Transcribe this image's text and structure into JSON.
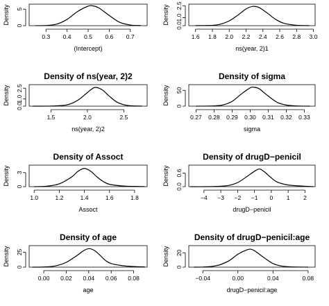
{
  "chart_data": [
    {
      "type": "line",
      "title": "",
      "xlabel": "(Intercept)",
      "ylabel": "Density",
      "xlim": [
        0.22,
        0.78
      ],
      "ylim": [
        0,
        6.5
      ],
      "xticks": [
        0.3,
        0.4,
        0.5,
        0.6,
        0.7
      ],
      "xtick_labels": [
        "0.3",
        "0.4",
        "0.5",
        "0.6",
        "0.7"
      ],
      "yticks": [
        0,
        5
      ],
      "ytick_labels": [
        "0",
        "5"
      ],
      "series": [
        {
          "x": [
            0.25,
            0.3,
            0.35,
            0.4,
            0.45,
            0.5,
            0.52,
            0.55,
            0.6,
            0.65,
            0.7,
            0.75
          ],
          "y": [
            0.01,
            0.06,
            0.45,
            1.9,
            4.3,
            5.9,
            6.0,
            5.4,
            3.1,
            1.0,
            0.2,
            0.03
          ]
        }
      ]
    },
    {
      "type": "line",
      "title": "",
      "xlabel": "ns(year, 2)1",
      "ylabel": "Density",
      "xlim": [
        1.52,
        3.02
      ],
      "ylim": [
        0,
        2.7
      ],
      "xticks": [
        1.6,
        1.8,
        2.0,
        2.2,
        2.4,
        2.6,
        2.8,
        3.0
      ],
      "xtick_labels": [
        "1.6",
        "1.8",
        "2.0",
        "2.2",
        "2.4",
        "2.6",
        "2.8",
        "3.0"
      ],
      "yticks": [
        0,
        1.0,
        2.5
      ],
      "ytick_labels": [
        "0.0",
        "1.0",
        "2.5"
      ],
      "series": [
        {
          "x": [
            1.6,
            1.8,
            1.9,
            2.0,
            2.1,
            2.2,
            2.28,
            2.35,
            2.45,
            2.55,
            2.65,
            2.8,
            2.95
          ],
          "y": [
            0.01,
            0.05,
            0.2,
            0.6,
            1.3,
            2.1,
            2.42,
            2.3,
            1.6,
            0.8,
            0.3,
            0.05,
            0.01
          ]
        }
      ]
    },
    {
      "type": "line",
      "title": "Density of ns(year, 2)2",
      "xlabel": "ns(year, 2)2",
      "ylabel": "Density",
      "xlim": [
        1.2,
        2.82
      ],
      "ylim": [
        0,
        3.0
      ],
      "xticks": [
        1.5,
        2.0,
        2.5
      ],
      "xtick_labels": [
        "1.5",
        "2.0",
        "2.5"
      ],
      "yticks": [
        0,
        1.0,
        2.5
      ],
      "ytick_labels": [
        "0.0",
        "1.0",
        "2.5"
      ],
      "series": [
        {
          "x": [
            1.25,
            1.5,
            1.7,
            1.8,
            1.9,
            2.0,
            2.1,
            2.2,
            2.3,
            2.4,
            2.5,
            2.6,
            2.75
          ],
          "y": [
            0.0,
            0.02,
            0.15,
            0.45,
            1.05,
            1.9,
            2.6,
            2.3,
            1.4,
            0.6,
            0.2,
            0.05,
            0.01
          ]
        }
      ]
    },
    {
      "type": "line",
      "title": "Density of sigma",
      "xlabel": "sigma",
      "ylabel": "Density",
      "xlim": [
        0.266,
        0.336
      ],
      "ylim": [
        0,
        68
      ],
      "xticks": [
        0.27,
        0.28,
        0.29,
        0.3,
        0.31,
        0.32,
        0.33
      ],
      "xtick_labels": [
        "0.27",
        "0.28",
        "0.29",
        "0.30",
        "0.31",
        "0.32",
        "0.33"
      ],
      "yticks": [
        0,
        50
      ],
      "ytick_labels": [
        "0",
        "50"
      ],
      "series": [
        {
          "x": [
            0.27,
            0.28,
            0.285,
            0.29,
            0.295,
            0.3,
            0.302,
            0.305,
            0.31,
            0.315,
            0.32,
            0.325,
            0.333
          ],
          "y": [
            0.0,
            1.0,
            4.0,
            15.0,
            38.0,
            58.0,
            60.0,
            55.0,
            32.0,
            12.0,
            3.5,
            1.0,
            0.0
          ]
        }
      ]
    },
    {
      "type": "line",
      "title": "Density of Assoct",
      "xlabel": "Assoct",
      "ylabel": "Density",
      "xlim": [
        0.96,
        1.9
      ],
      "ylim": [
        0,
        4.6
      ],
      "xticks": [
        1.0,
        1.2,
        1.4,
        1.6,
        1.8
      ],
      "xtick_labels": [
        "1.0",
        "1.2",
        "1.4",
        "1.6",
        "1.8"
      ],
      "yticks": [
        0,
        3
      ],
      "ytick_labels": [
        "0",
        "3"
      ],
      "series": [
        {
          "x": [
            1.0,
            1.1,
            1.2,
            1.3,
            1.35,
            1.4,
            1.45,
            1.5,
            1.55,
            1.6,
            1.7,
            1.8,
            1.88
          ],
          "y": [
            0.0,
            0.1,
            0.6,
            2.1,
            3.3,
            3.9,
            3.3,
            2.1,
            1.1,
            0.5,
            0.15,
            0.05,
            0.02
          ]
        }
      ]
    },
    {
      "type": "line",
      "title": "Density of drugD−penicil",
      "xlabel": "drugD−penicil",
      "ylabel": "Density",
      "xlim": [
        -4.9,
        2.6
      ],
      "ylim": [
        0,
        0.95
      ],
      "xticks": [
        -4,
        -3,
        -2,
        -1,
        0,
        1,
        2
      ],
      "xtick_labels": [
        "−4",
        "−3",
        "−2",
        "−1",
        "0",
        "1",
        "2"
      ],
      "yticks": [
        0,
        0.6
      ],
      "ytick_labels": [
        "0.0",
        "0.6"
      ],
      "series": [
        {
          "x": [
            -4.8,
            -4.0,
            -3.0,
            -2.5,
            -2.0,
            -1.5,
            -1.0,
            -0.7,
            -0.4,
            -0.1,
            0.3,
            0.8,
            1.3,
            2.0,
            2.5
          ],
          "y": [
            0.0,
            0.0,
            0.02,
            0.06,
            0.18,
            0.42,
            0.68,
            0.78,
            0.65,
            0.45,
            0.22,
            0.1,
            0.05,
            0.02,
            0.0
          ]
        }
      ]
    },
    {
      "type": "line",
      "title": "Density of age",
      "xlabel": "age",
      "ylabel": "Density",
      "xlim": [
        -0.013,
        0.092
      ],
      "ylim": [
        0,
        36
      ],
      "xticks": [
        0.0,
        0.02,
        0.04,
        0.06,
        0.08
      ],
      "xtick_labels": [
        "0.00",
        "0.02",
        "0.04",
        "0.06",
        "0.08"
      ],
      "yticks": [
        0,
        25
      ],
      "ytick_labels": [
        "0",
        "25"
      ],
      "series": [
        {
          "x": [
            -0.01,
            0.0,
            0.01,
            0.02,
            0.03,
            0.035,
            0.04,
            0.045,
            0.05,
            0.055,
            0.06,
            0.07,
            0.08,
            0.09
          ],
          "y": [
            0.0,
            0.3,
            2.0,
            8.0,
            20.0,
            27.0,
            31.0,
            28.0,
            20.0,
            11.0,
            6.0,
            2.5,
            1.0,
            0.3
          ]
        }
      ]
    },
    {
      "type": "line",
      "title": "Density of drugD−penicil:age",
      "xlabel": "drugD−penicil:age",
      "ylabel": "Density",
      "xlim": [
        -0.056,
        0.088
      ],
      "ylim": [
        0,
        30
      ],
      "xticks": [
        -0.04,
        0.0,
        0.04,
        0.08
      ],
      "xtick_labels": [
        "−0.04",
        "0.00",
        "0.04",
        "0.08"
      ],
      "yticks": [
        0,
        20
      ],
      "ytick_labels": [
        "0",
        "20"
      ],
      "series": [
        {
          "x": [
            -0.05,
            -0.04,
            -0.03,
            -0.02,
            -0.01,
            0.0,
            0.01,
            0.015,
            0.02,
            0.03,
            0.04,
            0.05,
            0.06,
            0.08
          ],
          "y": [
            0.0,
            0.2,
            1.0,
            3.5,
            9.0,
            18.0,
            24.0,
            25.0,
            22.0,
            13.0,
            5.0,
            1.5,
            0.4,
            0.0
          ]
        }
      ]
    }
  ]
}
